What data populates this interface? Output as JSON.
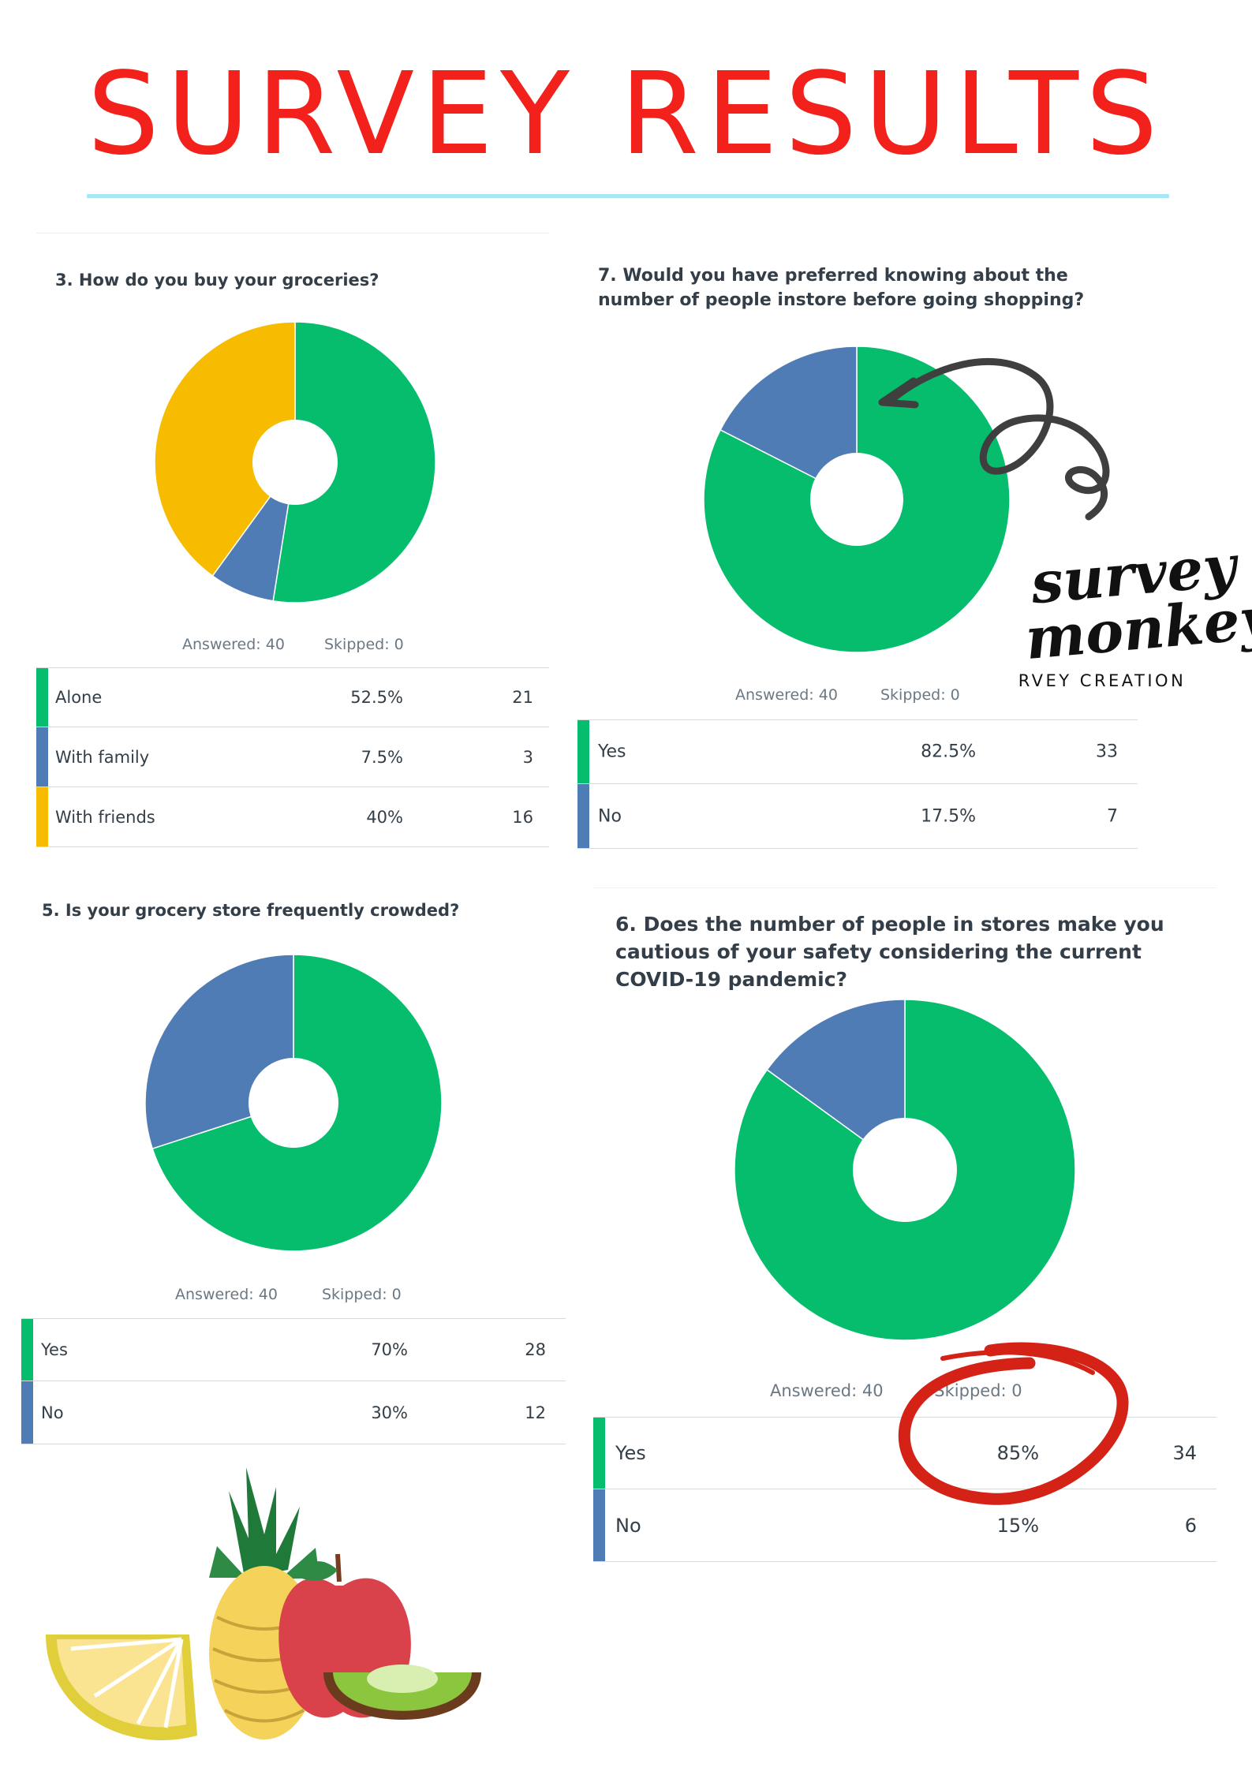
{
  "page": {
    "title": "SURVEY RESULTS"
  },
  "colors": {
    "green": "#05bd6c",
    "blue": "#507cb6",
    "yellow": "#f7bc00",
    "title_red": "#f2211b",
    "rule": "#a8e8f6"
  },
  "logo": {
    "line1": "survey",
    "line2": "monkey",
    "tagline": "SURVEY CREATION"
  },
  "chart_data": [
    {
      "type": "pie",
      "title": "3. How do you buy your groceries?",
      "answered": "Answered: 40",
      "skipped": "Skipped: 0",
      "rows": [
        {
          "label": "Alone",
          "percent": "52.5%",
          "count": "21",
          "value": 52.5,
          "color": "#05bd6c"
        },
        {
          "label": "With family",
          "percent": "7.5%",
          "count": "3",
          "value": 7.5,
          "color": "#507cb6"
        },
        {
          "label": "With friends",
          "percent": "40%",
          "count": "16",
          "value": 40,
          "color": "#f7bc00"
        }
      ]
    },
    {
      "type": "pie",
      "title": "7. Would you have preferred knowing about the number of people instore before going shopping?",
      "answered": "Answered: 40",
      "skipped": "Skipped: 0",
      "rows": [
        {
          "label": "Yes",
          "percent": "82.5%",
          "count": "33",
          "value": 82.5,
          "color": "#05bd6c"
        },
        {
          "label": "No",
          "percent": "17.5%",
          "count": "7",
          "value": 17.5,
          "color": "#507cb6"
        }
      ]
    },
    {
      "type": "pie",
      "title": "5. Is your grocery store frequently crowded?",
      "answered": "Answered: 40",
      "skipped": "Skipped: 0",
      "rows": [
        {
          "label": "Yes",
          "percent": "70%",
          "count": "28",
          "value": 70,
          "color": "#05bd6c"
        },
        {
          "label": "No",
          "percent": "30%",
          "count": "12",
          "value": 30,
          "color": "#507cb6"
        }
      ]
    },
    {
      "type": "pie",
      "title": "6. Does the number of people in stores make you cautious of your safety considering the current COVID-19 pandemic?",
      "answered": "Answered: 40",
      "skipped": "Skipped: 0",
      "rows": [
        {
          "label": "Yes",
          "percent": "85%",
          "count": "34",
          "value": 85,
          "color": "#05bd6c"
        },
        {
          "label": "No",
          "percent": "15%",
          "count": "6",
          "value": 15,
          "color": "#507cb6"
        }
      ]
    }
  ]
}
